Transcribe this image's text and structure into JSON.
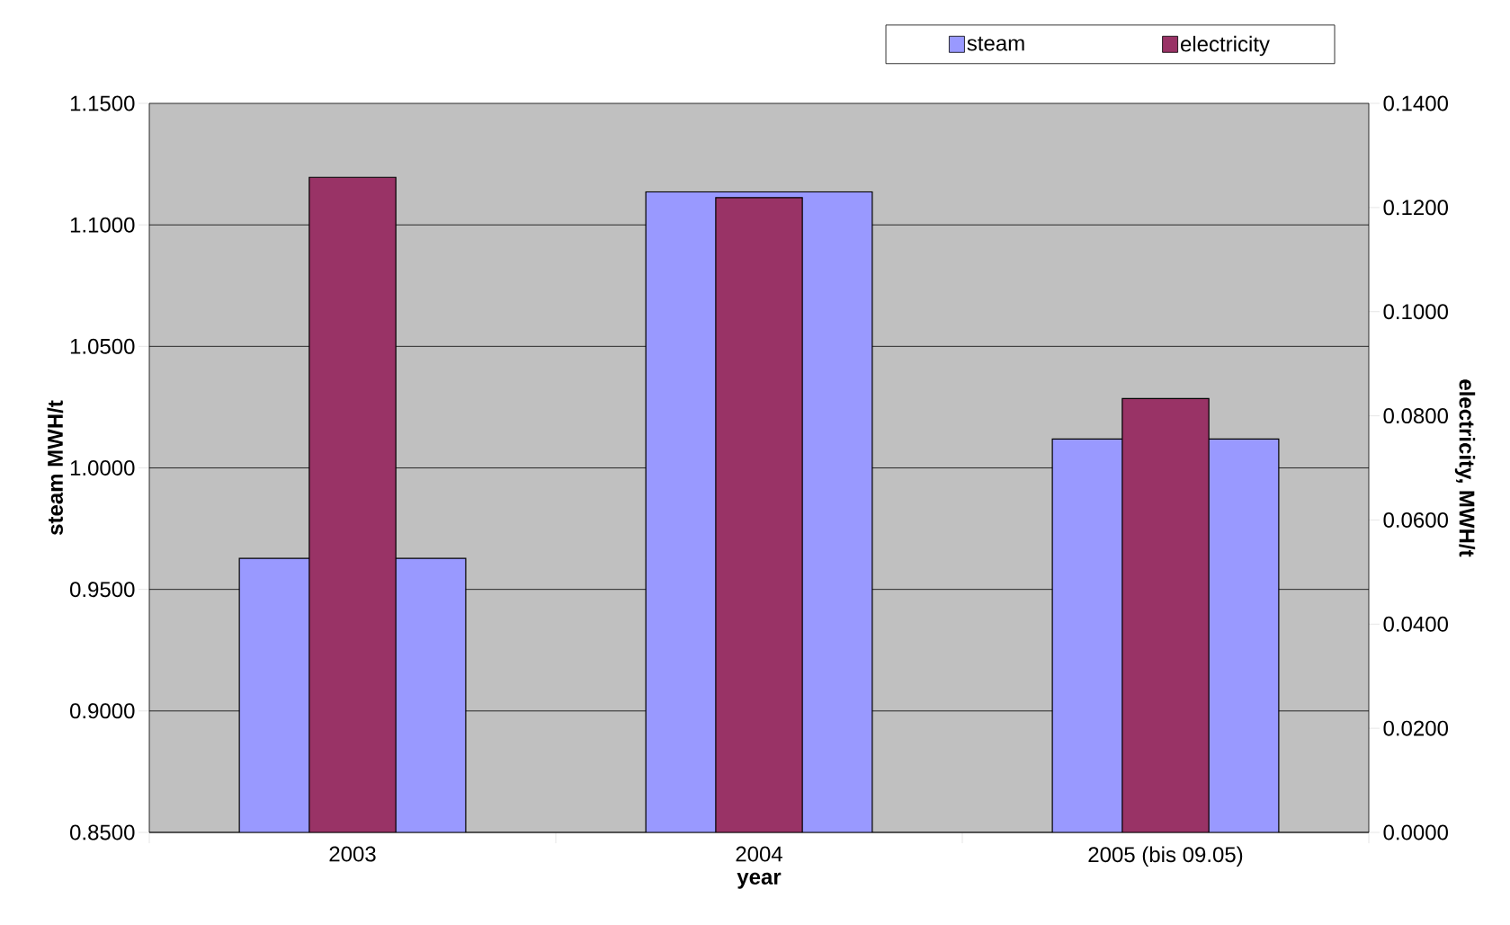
{
  "chart_data": {
    "type": "bar",
    "xlabel": "year",
    "ylabel": "steam MWH/t",
    "y2label": "electricity, MWH/t",
    "categories": [
      "2003",
      "2004",
      "2005 (bis 09.05)"
    ],
    "series": [
      {
        "name": "steam",
        "color": "#9999ff",
        "values": [
          0.9628,
          1.1136,
          1.0119
        ]
      },
      {
        "name": "electricity",
        "color": "#993366",
        "axis": "y2",
        "values": [
          0.1258,
          0.1219,
          0.0833
        ]
      }
    ],
    "ylim": [
      0.85,
      1.15
    ],
    "yticks": [
      {
        "value": 0.85,
        "label": "0.8500"
      },
      {
        "value": 0.9,
        "label": "0.9000"
      },
      {
        "value": 0.95,
        "label": "0.9500"
      },
      {
        "value": 1.0,
        "label": "1.0000"
      },
      {
        "value": 1.05,
        "label": "1.0500"
      },
      {
        "value": 1.1,
        "label": "1.1000"
      },
      {
        "value": 1.15,
        "label": "1.1500"
      }
    ],
    "y2lim": [
      0,
      0.14
    ],
    "y2ticks": [
      {
        "value": 0,
        "label": "0.0000"
      },
      {
        "value": 0.02,
        "label": "0.0200"
      },
      {
        "value": 0.04,
        "label": "0.0400"
      },
      {
        "value": 0.06,
        "label": "0.0600"
      },
      {
        "value": 0.08,
        "label": "0.0800"
      },
      {
        "value": 0.1,
        "label": "0.1000"
      },
      {
        "value": 0.12,
        "label": "0.1200"
      },
      {
        "value": 0.14,
        "label": "0.1400"
      }
    ],
    "grid": "y",
    "legend": "top right"
  }
}
